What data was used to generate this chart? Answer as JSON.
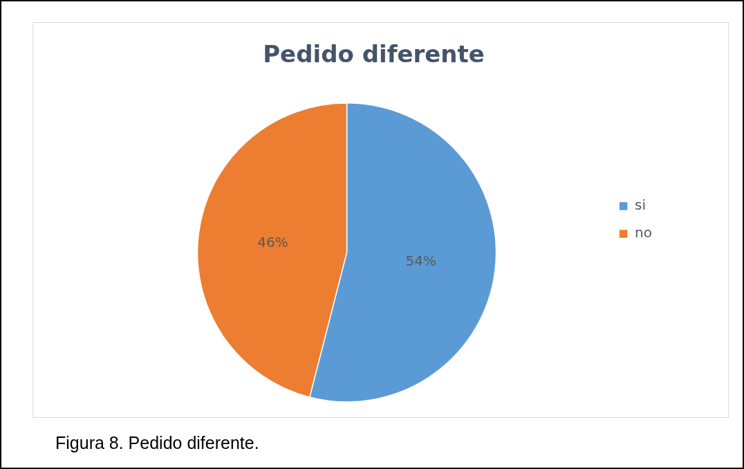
{
  "chart_data": {
    "type": "pie",
    "title": "Pedido diferente",
    "categories": [
      "si",
      "no"
    ],
    "values": [
      54,
      46
    ],
    "colors": [
      "#5b9bd5",
      "#ed7d31"
    ],
    "value_labels": [
      "54%",
      "46%"
    ],
    "legend": "right",
    "annotations": [
      "Figura 8. Pedido diferente."
    ]
  }
}
